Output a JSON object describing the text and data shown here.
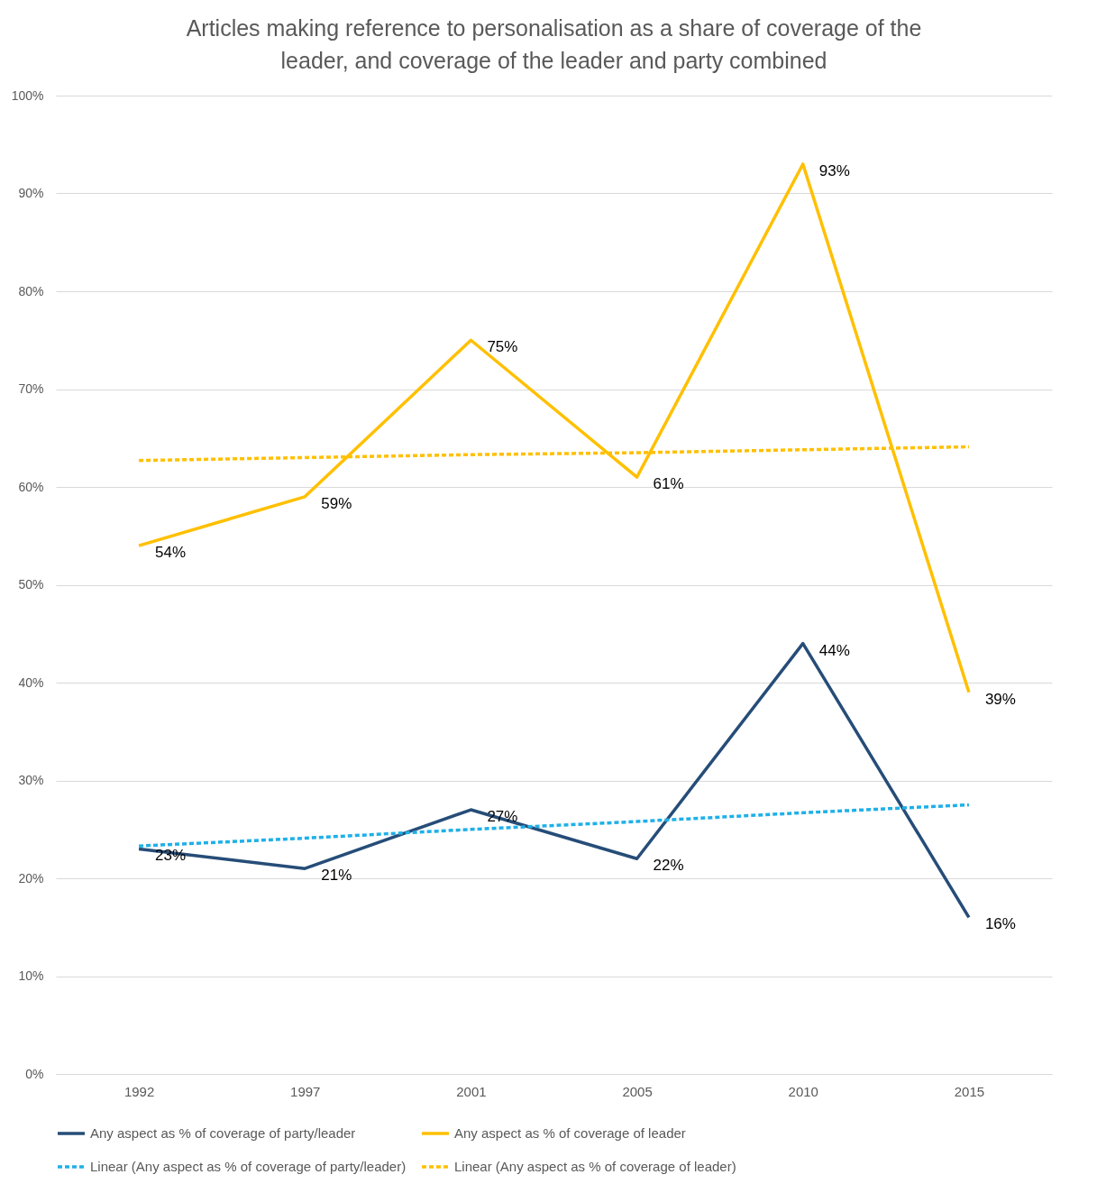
{
  "chart_data": {
    "type": "line",
    "title": "Articles making reference to personalisation as a share of coverage of the leader, and coverage of the leader and party combined",
    "categories": [
      "1992",
      "1997",
      "2001",
      "2005",
      "2010",
      "2015"
    ],
    "series": [
      {
        "name": "Any aspect as % of coverage of party/leader",
        "color": "#264d78",
        "values": [
          23,
          21,
          27,
          22,
          44,
          16
        ],
        "value_labels": [
          "23%",
          "21%",
          "27%",
          "22%",
          "44%",
          "16%"
        ],
        "line_style": "solid"
      },
      {
        "name": "Any aspect as % of coverage of leader",
        "color": "#ffc000",
        "values": [
          54,
          59,
          75,
          61,
          93,
          39
        ],
        "value_labels": [
          "54%",
          "59%",
          "75%",
          "61%",
          "93%",
          "39%"
        ],
        "line_style": "solid"
      },
      {
        "name": "Linear (Any aspect as % of coverage of party/leader)",
        "color": "#1fb0e8",
        "type": "line",
        "values": [
          23.3,
          24.1,
          25,
          25.8,
          26.7,
          27.5
        ],
        "line_style": "dashed"
      },
      {
        "name": "Linear (Any aspect as % of coverage of leader)",
        "color": "#ffc000",
        "type": "line",
        "values": [
          62.7,
          63,
          63.3,
          63.5,
          63.8,
          64.1
        ],
        "line_style": "dashed"
      }
    ],
    "ylim": [
      0,
      100
    ],
    "yticks": [
      {
        "value": 0,
        "label": "0%"
      },
      {
        "value": 10,
        "label": "10%"
      },
      {
        "value": 20,
        "label": "20%"
      },
      {
        "value": 30,
        "label": "30%"
      },
      {
        "value": 40,
        "label": "40%"
      },
      {
        "value": 50,
        "label": "50%"
      },
      {
        "value": 60,
        "label": "60%"
      },
      {
        "value": 70,
        "label": "70%"
      },
      {
        "value": 80,
        "label": "80%"
      },
      {
        "value": 90,
        "label": "90%"
      },
      {
        "value": 100,
        "label": "100%"
      }
    ],
    "grid": "y",
    "legend": "bottom",
    "marker": "none"
  }
}
